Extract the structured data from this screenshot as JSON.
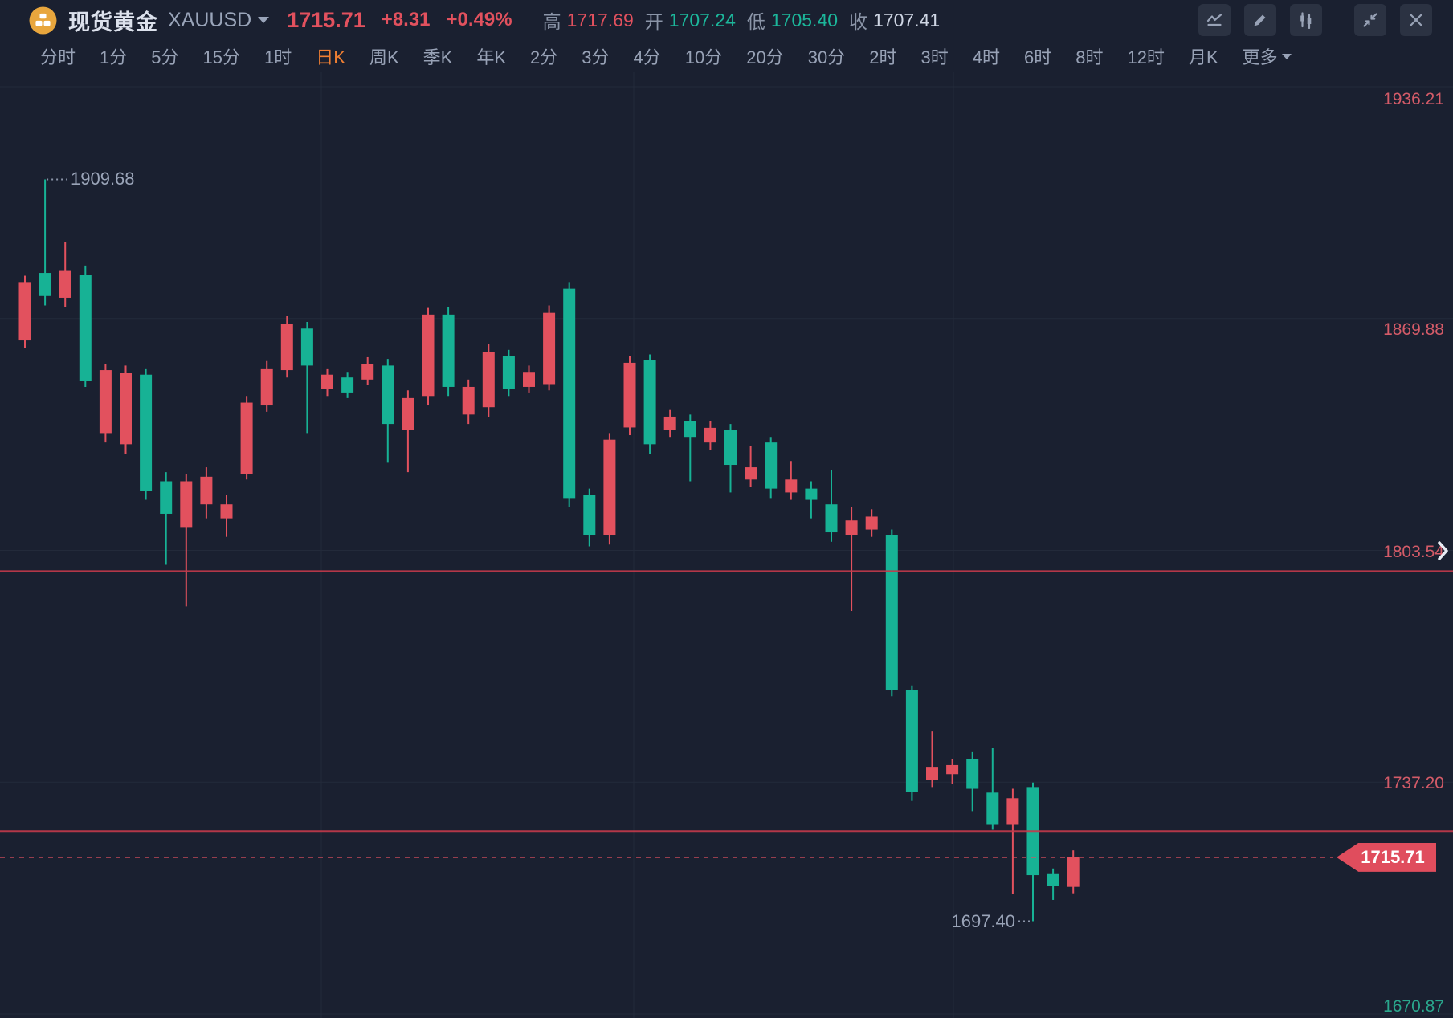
{
  "header": {
    "instrument_name": "现货黄金",
    "symbol": "XAUUSD",
    "price": "1715.71",
    "change": "+8.31",
    "change_pct": "+0.49%",
    "stats": [
      {
        "label": "高",
        "value": "1717.69",
        "tone": "up"
      },
      {
        "label": "开",
        "value": "1707.24",
        "tone": "down"
      },
      {
        "label": "低",
        "value": "1705.40",
        "tone": "down"
      },
      {
        "label": "收",
        "value": "1707.41",
        "tone": "neutral"
      }
    ],
    "toolbar_icons": [
      "line-chart-icon",
      "draw-pencil-icon",
      "candlestick-icon",
      "collapse-icon",
      "close-icon"
    ]
  },
  "tabs": {
    "items": [
      "分时",
      "1分",
      "5分",
      "15分",
      "1时",
      "日K",
      "周K",
      "季K",
      "年K",
      "2分",
      "3分",
      "4分",
      "10分",
      "20分",
      "30分",
      "2时",
      "3时",
      "4时",
      "6时",
      "8时",
      "12时",
      "月K"
    ],
    "active": "日K",
    "more_label": "更多"
  },
  "colors": {
    "background": "#1a2030",
    "up": "#e2515e",
    "down": "#17b295",
    "grid": "#232a3a",
    "axis_label_up": "#d45b68",
    "axis_label_down": "#2aa78d",
    "alert_line": "#c43a4b",
    "current_line": "#e0505f",
    "badge": "#e04d5d",
    "active_tab": "#ef7f33"
  },
  "chart_data": {
    "type": "candlestick",
    "title": "现货黄金 XAUUSD 日K",
    "ohlc_order": [
      "open",
      "high",
      "low",
      "close"
    ],
    "y_axis_labels": [
      {
        "text": "1936.21",
        "price": 1936.21,
        "tone": "up"
      },
      {
        "text": "1869.88",
        "price": 1869.875,
        "tone": "up"
      },
      {
        "text": "1803.54",
        "price": 1803.54,
        "tone": "up"
      },
      {
        "text": "1737.20",
        "price": 1737.205,
        "tone": "up"
      },
      {
        "text": "1670.87",
        "price": 1670.87,
        "tone": "down"
      }
    ],
    "price_range": [
      1670.87,
      1936.21
    ],
    "horizontal_alert_lines": [
      1797.6,
      1723.2
    ],
    "current_price": 1715.71,
    "current_price_label": "1715.71",
    "annotations": [
      {
        "text": "1909.68",
        "price": 1909.68,
        "candle_index": 1,
        "side": "high"
      },
      {
        "text": "1697.40",
        "price": 1697.4,
        "candle_index": 50,
        "side": "low"
      }
    ],
    "candles": [
      [
        1863.6,
        1882.1,
        1861.4,
        1880.3
      ],
      [
        1882.9,
        1909.68,
        1873.6,
        1876.3
      ],
      [
        1875.8,
        1891.7,
        1873.1,
        1883.7
      ],
      [
        1882.4,
        1885.0,
        1850.3,
        1851.9
      ],
      [
        1837.1,
        1856.9,
        1834.4,
        1855.1
      ],
      [
        1833.9,
        1856.4,
        1831.2,
        1854.3
      ],
      [
        1853.8,
        1855.6,
        1818.0,
        1820.6
      ],
      [
        1823.3,
        1825.9,
        1799.4,
        1814.0
      ],
      [
        1810.0,
        1825.4,
        1787.5,
        1823.3
      ],
      [
        1816.7,
        1827.3,
        1812.7,
        1824.6
      ],
      [
        1812.7,
        1819.3,
        1807.4,
        1816.7
      ],
      [
        1825.4,
        1847.7,
        1823.8,
        1845.8
      ],
      [
        1845.0,
        1857.7,
        1843.2,
        1855.6
      ],
      [
        1855.1,
        1870.5,
        1853.0,
        1868.3
      ],
      [
        1867.0,
        1868.9,
        1837.1,
        1856.4
      ],
      [
        1849.8,
        1855.6,
        1847.7,
        1853.8
      ],
      [
        1853.0,
        1854.6,
        1847.1,
        1848.7
      ],
      [
        1852.4,
        1858.8,
        1850.8,
        1856.9
      ],
      [
        1856.4,
        1858.3,
        1828.6,
        1839.7
      ],
      [
        1837.9,
        1849.3,
        1825.9,
        1847.1
      ],
      [
        1847.7,
        1872.9,
        1845.0,
        1871.0
      ],
      [
        1871.0,
        1873.1,
        1847.7,
        1850.3
      ],
      [
        1842.4,
        1852.4,
        1839.7,
        1850.3
      ],
      [
        1844.5,
        1862.5,
        1841.8,
        1860.4
      ],
      [
        1859.1,
        1860.9,
        1847.7,
        1849.8
      ],
      [
        1850.3,
        1856.4,
        1848.7,
        1854.6
      ],
      [
        1851.1,
        1873.6,
        1849.3,
        1871.5
      ],
      [
        1878.4,
        1880.3,
        1815.9,
        1818.5
      ],
      [
        1819.3,
        1821.2,
        1804.7,
        1807.9
      ],
      [
        1807.9,
        1837.1,
        1805.2,
        1835.2
      ],
      [
        1838.7,
        1859.1,
        1836.5,
        1857.2
      ],
      [
        1858.0,
        1859.6,
        1831.2,
        1833.9
      ],
      [
        1838.1,
        1843.7,
        1836.0,
        1841.8
      ],
      [
        1840.5,
        1842.4,
        1823.3,
        1836.0
      ],
      [
        1834.4,
        1840.5,
        1832.3,
        1838.6
      ],
      [
        1837.9,
        1839.7,
        1820.1,
        1828.0
      ],
      [
        1823.8,
        1833.3,
        1821.7,
        1827.3
      ],
      [
        1834.4,
        1836.0,
        1818.5,
        1821.2
      ],
      [
        1820.1,
        1829.1,
        1818.0,
        1823.8
      ],
      [
        1821.2,
        1823.3,
        1812.7,
        1818.0
      ],
      [
        1816.7,
        1826.5,
        1806.0,
        1808.7
      ],
      [
        1807.9,
        1815.9,
        1786.2,
        1812.1
      ],
      [
        1809.5,
        1815.3,
        1807.4,
        1813.2
      ],
      [
        1807.9,
        1809.5,
        1761.8,
        1763.6
      ],
      [
        1763.6,
        1764.9,
        1731.8,
        1734.5
      ],
      [
        1737.9,
        1751.7,
        1735.8,
        1741.6
      ],
      [
        1739.5,
        1743.7,
        1736.8,
        1742.1
      ],
      [
        1743.7,
        1745.8,
        1728.9,
        1735.3
      ],
      [
        1734.2,
        1746.9,
        1723.6,
        1725.2
      ],
      [
        1725.2,
        1735.3,
        1705.3,
        1732.6
      ],
      [
        1735.8,
        1737.1,
        1697.4,
        1710.6
      ],
      [
        1710.9,
        1712.5,
        1703.5,
        1707.41
      ],
      [
        1707.24,
        1717.69,
        1705.4,
        1715.71
      ]
    ]
  }
}
